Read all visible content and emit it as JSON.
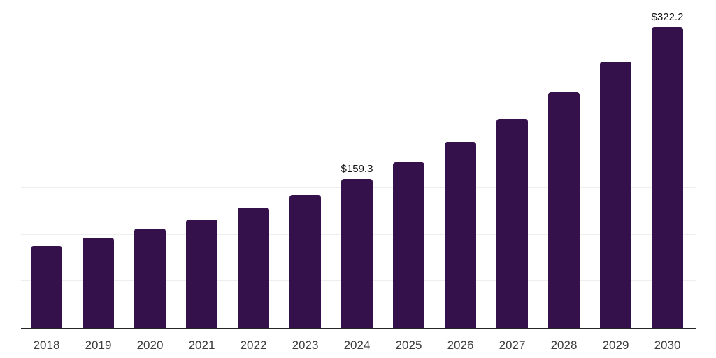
{
  "chart_data": {
    "type": "bar",
    "title": "",
    "xlabel": "",
    "ylabel": "",
    "categories": [
      "2018",
      "2019",
      "2020",
      "2021",
      "2022",
      "2023",
      "2024",
      "2025",
      "2026",
      "2027",
      "2028",
      "2029",
      "2030"
    ],
    "values": [
      87.6,
      96.9,
      106.1,
      116.3,
      128.9,
      142.6,
      159.3,
      177.7,
      199.4,
      224.3,
      252.3,
      285.2,
      322.2
    ],
    "value_labels": {
      "2024": "$159.3",
      "2030": "$322.2"
    },
    "ylim": [
      0,
      350
    ],
    "gridline_step": 50,
    "grid": "horizontal-only",
    "legend": "none",
    "colors": {
      "bar": "#35114B",
      "axis_line": "#262626",
      "gridline": "#eeeeee",
      "tick_label": "#3c3c3c",
      "value_label": "#111111",
      "background": "#ffffff"
    }
  }
}
